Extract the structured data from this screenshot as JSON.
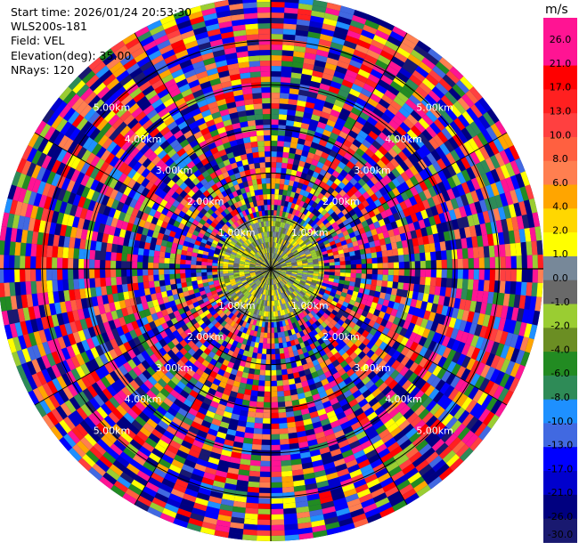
{
  "header": {
    "start_time": "Start time: 2026/01/24 20:53:30",
    "instrument": "WLS200s-181",
    "field": "Field: VEL",
    "elevation": "Elevation(deg): 35.00",
    "nrays": "NRays: 120"
  },
  "colorbar": {
    "unit": "m/s",
    "ticks": [
      "26.0",
      "21.0",
      "17.0",
      "13.0",
      "10.0",
      "8.0",
      "6.0",
      "4.0",
      "2.0",
      "1.0",
      "0.0",
      "-1.0",
      "-2.0",
      "-4.0",
      "-6.0",
      "-8.0",
      "-10.0",
      "-13.0",
      "-17.0",
      "-21.0",
      "-26.0",
      "-30.0"
    ],
    "colors": [
      "#ff1493",
      "#ff1493",
      "#ff0000",
      "#ff2020",
      "#ff4040",
      "#ff6040",
      "#ff7f50",
      "#ffa500",
      "#ffd700",
      "#ffff00",
      "#778899",
      "#696969",
      "#9acd32",
      "#6b8e23",
      "#228b22",
      "#2e8b57",
      "#1e90ff",
      "#4169e1",
      "#0000ff",
      "#0000cd",
      "#000080",
      "#191970"
    ]
  },
  "chart_data": {
    "type": "heatmap",
    "field": "VEL",
    "nrays": 120,
    "elevation_deg": 35.0,
    "range_rings": [
      {
        "label": "1.00km"
      },
      {
        "label": "2.00km"
      },
      {
        "label": "3.00km"
      },
      {
        "label": "4.00km"
      },
      {
        "label": "5.00km"
      }
    ],
    "value_range": [
      -30,
      30
    ]
  }
}
